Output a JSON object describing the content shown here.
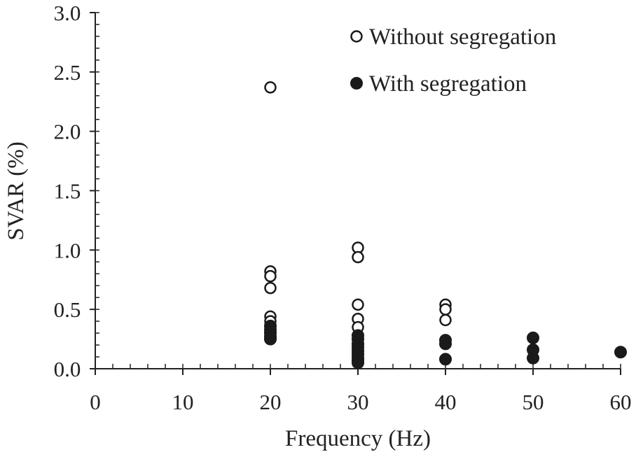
{
  "chart_data": {
    "type": "scatter",
    "xlabel": "Frequency (Hz)",
    "ylabel": "SVAR (%)",
    "xlim": [
      0,
      60
    ],
    "ylim": [
      0,
      3.0
    ],
    "x_ticks": [
      "0",
      "10",
      "20",
      "30",
      "40",
      "50",
      "60"
    ],
    "y_ticks": [
      "0.0",
      "0.5",
      "1.0",
      "1.5",
      "2.0",
      "2.5",
      "3.0"
    ],
    "grid": false,
    "legend_position": "top-right",
    "series": [
      {
        "name": "Without segregation",
        "marker": "hollow-circle",
        "points": [
          [
            20,
            2.37
          ],
          [
            20,
            0.82
          ],
          [
            20,
            0.78
          ],
          [
            20,
            0.68
          ],
          [
            20,
            0.44
          ],
          [
            20,
            0.4
          ],
          [
            20,
            0.36
          ],
          [
            20,
            0.31
          ],
          [
            30,
            1.02
          ],
          [
            30,
            0.94
          ],
          [
            30,
            0.54
          ],
          [
            30,
            0.42
          ],
          [
            30,
            0.35
          ],
          [
            30,
            0.28
          ],
          [
            30,
            0.2
          ],
          [
            30,
            0.14
          ],
          [
            40,
            0.54
          ],
          [
            40,
            0.5
          ],
          [
            40,
            0.41
          ]
        ]
      },
      {
        "name": "With segregation",
        "marker": "filled-circle",
        "points": [
          [
            20,
            0.36
          ],
          [
            20,
            0.33
          ],
          [
            20,
            0.3
          ],
          [
            20,
            0.27
          ],
          [
            20,
            0.25
          ],
          [
            30,
            0.28
          ],
          [
            30,
            0.25
          ],
          [
            30,
            0.21
          ],
          [
            30,
            0.18
          ],
          [
            30,
            0.15
          ],
          [
            30,
            0.12
          ],
          [
            30,
            0.09
          ],
          [
            30,
            0.07
          ],
          [
            30,
            0.05
          ],
          [
            40,
            0.24
          ],
          [
            40,
            0.21
          ],
          [
            40,
            0.08
          ],
          [
            50,
            0.26
          ],
          [
            50,
            0.16
          ],
          [
            50,
            0.09
          ],
          [
            60,
            0.14
          ]
        ]
      }
    ]
  }
}
